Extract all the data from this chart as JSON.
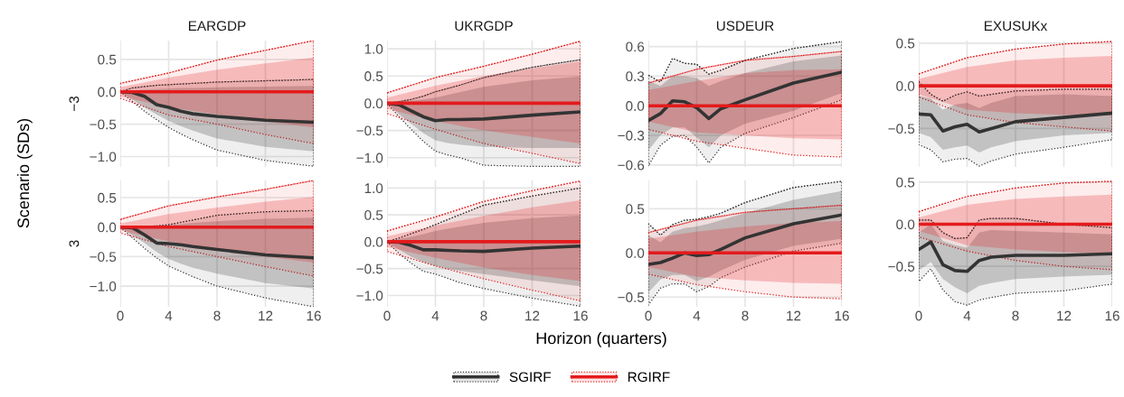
{
  "chart_data": [
    {
      "type": "line",
      "title": "EARGDP",
      "ylabel": "−3",
      "annotations": [
        "Scenario (SDs)"
      ],
      "legend": "bottom",
      "grid": true,
      "tick_labels": "y",
      "xlim": [
        0,
        16
      ],
      "xticks": [
        0,
        4,
        8,
        12,
        16
      ],
      "ylim": [
        -1.16,
        0.79
      ],
      "yticks": [
        {
          "value": -1,
          "label": "−1.0"
        },
        {
          "value": -0.5,
          "label": "−0.5"
        },
        {
          "value": 0,
          "label": "0.0"
        },
        {
          "value": 0.5,
          "label": "0.5"
        }
      ],
      "series": [
        {
          "name": "SGIRF",
          "color": "#333333",
          "x": [
            0,
            1,
            2,
            3,
            4,
            5,
            6,
            8,
            12,
            16
          ],
          "values": [
            0,
            -0.01,
            -0.07,
            -0.2,
            -0.24,
            -0.3,
            -0.34,
            -0.38,
            -0.44,
            -0.47
          ],
          "lower": [
            0,
            -0.12,
            -0.24,
            -0.35,
            -0.45,
            -0.53,
            -0.6,
            -0.72,
            -0.85,
            -0.92
          ],
          "upper": [
            0,
            0.02,
            0.03,
            0.04,
            0.05,
            0.06,
            0.06,
            0.07,
            0.08,
            0.09
          ]
        },
        {
          "name": "RGIRF",
          "color": "#e41a1c",
          "x": [
            0,
            4,
            8,
            12,
            16
          ],
          "values": [
            0,
            0,
            0,
            0,
            0
          ],
          "lower": [
            -0.07,
            -0.24,
            -0.35,
            -0.46,
            -0.55
          ],
          "upper": [
            0.07,
            0.22,
            0.34,
            0.44,
            0.53
          ]
        },
        {
          "color": "#333333",
          "line_style": "dotted",
          "x": [
            0,
            1,
            2,
            3,
            4,
            5,
            6,
            8,
            12,
            16
          ],
          "values": [
            0,
            0.06,
            0.08,
            0.1,
            0.11,
            0.12,
            0.13,
            0.15,
            0.17,
            0.19
          ],
          "lower": [
            0,
            -0.15,
            -0.3,
            -0.43,
            -0.55,
            -0.65,
            -0.74,
            -0.9,
            -1.06,
            -1.15
          ],
          "upper": [
            0,
            0.06,
            0.08,
            0.1,
            0.11,
            0.12,
            0.13,
            0.15,
            0.17,
            0.19
          ]
        },
        {
          "color": "#e41a1c",
          "line_style": "dotted",
          "x": [
            0,
            4,
            8,
            12,
            16
          ],
          "values": [
            0.13,
            0.29,
            0.49,
            0.64,
            0.79
          ],
          "lower": [
            -0.1,
            -0.36,
            -0.5,
            -0.66,
            -0.8
          ],
          "upper": [
            0.13,
            0.29,
            0.49,
            0.64,
            0.79
          ]
        }
      ]
    },
    {
      "type": "line",
      "title": "UKRGDP",
      "grid": true,
      "tick_labels": "y",
      "xlim": [
        0,
        16
      ],
      "xticks": [
        0,
        4,
        8,
        12,
        16
      ],
      "ylim": [
        -1.17,
        1.15
      ],
      "yticks": [
        {
          "value": -1,
          "label": "−1.0"
        },
        {
          "value": -0.5,
          "label": "−0.5"
        },
        {
          "value": 0,
          "label": "0.0"
        },
        {
          "value": 0.5,
          "label": "0.5"
        },
        {
          "value": 1,
          "label": "1.0"
        }
      ],
      "series": [
        {
          "color": "#333333",
          "x": [
            0,
            1,
            2,
            3,
            4,
            5,
            6,
            8,
            12,
            16
          ],
          "values": [
            0,
            -0.03,
            -0.14,
            -0.25,
            -0.32,
            -0.3,
            -0.3,
            -0.29,
            -0.22,
            -0.16
          ],
          "lower": [
            0,
            -0.2,
            -0.38,
            -0.55,
            -0.68,
            -0.73,
            -0.76,
            -0.8,
            -0.82,
            -0.82
          ],
          "upper": [
            0,
            0.03,
            0.05,
            0.07,
            0.1,
            0.15,
            0.2,
            0.3,
            0.42,
            0.49
          ]
        },
        {
          "color": "#e41a1c",
          "x": [
            0,
            4,
            8,
            12,
            16
          ],
          "values": [
            0,
            0,
            0,
            0,
            0
          ],
          "lower": [
            -0.1,
            -0.33,
            -0.5,
            -0.62,
            -0.74
          ],
          "upper": [
            0.1,
            0.32,
            0.5,
            0.64,
            0.77
          ]
        },
        {
          "color": "#333333",
          "line_style": "dotted",
          "x": [
            0,
            1,
            2,
            3,
            4,
            5,
            6,
            8,
            12,
            16
          ],
          "values": [
            0,
            0.03,
            0.07,
            0.13,
            0.21,
            0.27,
            0.33,
            0.47,
            0.66,
            0.8
          ],
          "lower": [
            0,
            -0.25,
            -0.48,
            -0.7,
            -0.88,
            -0.95,
            -1.0,
            -1.14,
            -1.16,
            -1.16
          ],
          "upper": [
            0,
            0.03,
            0.07,
            0.13,
            0.21,
            0.27,
            0.33,
            0.47,
            0.66,
            0.8
          ]
        },
        {
          "color": "#e41a1c",
          "line_style": "dotted",
          "x": [
            0,
            4,
            8,
            12,
            16
          ],
          "values": [
            0.19,
            0.47,
            0.68,
            0.9,
            1.14
          ],
          "lower": [
            -0.19,
            -0.48,
            -0.74,
            -0.92,
            -1.11
          ],
          "upper": [
            0.19,
            0.47,
            0.68,
            0.9,
            1.14
          ]
        }
      ]
    },
    {
      "type": "line",
      "title": "USDEUR",
      "grid": true,
      "tick_labels": "y",
      "xlim": [
        0,
        16
      ],
      "xticks": [
        0,
        4,
        8,
        12,
        16
      ],
      "ylim": [
        -0.62,
        0.66
      ],
      "yticks": [
        {
          "value": -0.6,
          "label": "−0.6"
        },
        {
          "value": -0.3,
          "label": "−0.3"
        },
        {
          "value": 0,
          "label": "0.0"
        },
        {
          "value": 0.3,
          "label": "0.3"
        },
        {
          "value": 0.6,
          "label": "0.6"
        }
      ],
      "series": [
        {
          "color": "#333333",
          "x": [
            0,
            1,
            2,
            3,
            4,
            5,
            6,
            8,
            12,
            16
          ],
          "values": [
            -0.15,
            -0.08,
            0.05,
            0.04,
            -0.02,
            -0.13,
            -0.03,
            0.06,
            0.23,
            0.34
          ],
          "lower": [
            -0.45,
            -0.3,
            -0.22,
            -0.22,
            -0.32,
            -0.42,
            -0.3,
            -0.18,
            -0.05,
            0.13
          ],
          "upper": [
            0.25,
            0.2,
            0.3,
            0.3,
            0.28,
            0.2,
            0.25,
            0.33,
            0.45,
            0.51
          ]
        },
        {
          "color": "#e41a1c",
          "x": [
            0,
            4,
            8,
            12,
            16
          ],
          "values": [
            0,
            0,
            0,
            0,
            0
          ],
          "lower": [
            -0.16,
            -0.27,
            -0.3,
            -0.33,
            -0.34
          ],
          "upper": [
            0.16,
            0.25,
            0.33,
            0.36,
            0.37
          ]
        },
        {
          "color": "#333333",
          "line_style": "dotted",
          "x": [
            0,
            1,
            2,
            3,
            4,
            5,
            6,
            8,
            12,
            16
          ],
          "values": [
            0.31,
            0.24,
            0.48,
            0.43,
            0.42,
            0.32,
            0.36,
            0.46,
            0.58,
            0.65
          ],
          "lower": [
            -0.61,
            -0.4,
            -0.31,
            -0.3,
            -0.42,
            -0.58,
            -0.42,
            -0.28,
            -0.12,
            0.06
          ],
          "upper": [
            0.31,
            0.24,
            0.48,
            0.43,
            0.42,
            0.32,
            0.36,
            0.46,
            0.58,
            0.65
          ]
        },
        {
          "color": "#e41a1c",
          "line_style": "dotted",
          "x": [
            0,
            4,
            8,
            12,
            16
          ],
          "values": [
            0.23,
            0.37,
            0.46,
            0.5,
            0.55
          ],
          "lower": [
            -0.24,
            -0.36,
            -0.43,
            -0.5,
            -0.52
          ],
          "upper": [
            0.23,
            0.37,
            0.46,
            0.5,
            0.55
          ]
        }
      ]
    },
    {
      "type": "line",
      "title": "EXUSUKx",
      "grid": true,
      "tick_labels": "y",
      "xlim": [
        0,
        16
      ],
      "xticks": [
        0,
        4,
        8,
        12,
        16
      ],
      "ylim": [
        -0.95,
        0.53
      ],
      "yticks": [
        {
          "value": -0.5,
          "label": "−0.5"
        },
        {
          "value": 0,
          "label": "0.0"
        },
        {
          "value": 0.5,
          "label": "0.5"
        }
      ],
      "series": [
        {
          "color": "#333333",
          "x": [
            0,
            1,
            2,
            3,
            4,
            5,
            6,
            8,
            12,
            16
          ],
          "values": [
            -0.33,
            -0.34,
            -0.53,
            -0.48,
            -0.45,
            -0.54,
            -0.5,
            -0.42,
            -0.37,
            -0.32
          ],
          "lower": [
            -0.55,
            -0.6,
            -0.75,
            -0.72,
            -0.7,
            -0.78,
            -0.72,
            -0.65,
            -0.58,
            -0.55
          ],
          "upper": [
            -0.12,
            -0.15,
            -0.28,
            -0.22,
            -0.2,
            -0.26,
            -0.2,
            -0.12,
            -0.1,
            -0.12
          ]
        },
        {
          "color": "#e41a1c",
          "x": [
            0,
            4,
            8,
            12,
            16
          ],
          "values": [
            0,
            0,
            0,
            0,
            0
          ],
          "lower": [
            -0.1,
            -0.28,
            -0.32,
            -0.34,
            -0.35
          ],
          "upper": [
            0.08,
            0.22,
            0.3,
            0.33,
            0.35
          ]
        },
        {
          "color": "#333333",
          "line_style": "dotted",
          "x": [
            0,
            1,
            2,
            3,
            4,
            5,
            6,
            8,
            12,
            16
          ],
          "values": [
            0.05,
            -0.1,
            -0.18,
            -0.11,
            -0.07,
            -0.12,
            -0.1,
            -0.06,
            -0.04,
            -0.04
          ],
          "lower": [
            -0.69,
            -0.75,
            -0.89,
            -0.86,
            -0.85,
            -0.94,
            -0.88,
            -0.8,
            -0.72,
            -0.63
          ],
          "upper": [
            0.05,
            -0.1,
            -0.18,
            -0.11,
            -0.07,
            -0.12,
            -0.1,
            -0.06,
            -0.04,
            -0.04
          ]
        },
        {
          "color": "#e41a1c",
          "line_style": "dotted",
          "x": [
            0,
            4,
            8,
            12,
            16
          ],
          "values": [
            0.14,
            0.33,
            0.43,
            0.49,
            0.52
          ],
          "lower": [
            -0.13,
            -0.34,
            -0.43,
            -0.48,
            -0.53
          ],
          "upper": [
            0.14,
            0.33,
            0.43,
            0.49,
            0.52
          ]
        }
      ]
    },
    {
      "type": "line",
      "ylabel": "3",
      "grid": true,
      "xlim": [
        0,
        16
      ],
      "xticks": [
        0,
        4,
        8,
        12,
        16
      ],
      "ylim": [
        -1.35,
        0.79
      ],
      "yticks": [
        {
          "value": -1,
          "label": "−1.0"
        },
        {
          "value": -0.5,
          "label": "−0.5"
        },
        {
          "value": 0,
          "label": "0.0"
        },
        {
          "value": 0.5,
          "label": "0.5"
        }
      ],
      "series": [
        {
          "color": "#333333",
          "x": [
            0,
            1,
            2,
            3,
            4,
            5,
            6,
            8,
            12,
            16
          ],
          "values": [
            0,
            -0.01,
            -0.13,
            -0.27,
            -0.28,
            -0.3,
            -0.33,
            -0.38,
            -0.47,
            -0.52
          ],
          "lower": [
            0,
            -0.14,
            -0.27,
            -0.42,
            -0.54,
            -0.62,
            -0.69,
            -0.79,
            -0.95,
            -1.04
          ],
          "upper": [
            0,
            0.01,
            0.01,
            0.02,
            0.03,
            0.05,
            0.07,
            0.1,
            0.14,
            0.16
          ]
        },
        {
          "color": "#e41a1c",
          "x": [
            0,
            4,
            8,
            12,
            16
          ],
          "values": [
            0,
            0,
            0,
            0,
            0
          ],
          "lower": [
            -0.06,
            -0.24,
            -0.38,
            -0.5,
            -0.6
          ],
          "upper": [
            0.06,
            0.22,
            0.33,
            0.43,
            0.51
          ]
        },
        {
          "color": "#333333",
          "line_style": "dotted",
          "x": [
            0,
            1,
            2,
            3,
            4,
            5,
            6,
            8,
            12,
            16
          ],
          "values": [
            0,
            0.01,
            0.01,
            0.02,
            0.04,
            0.08,
            0.12,
            0.2,
            0.26,
            0.28
          ],
          "lower": [
            0,
            -0.18,
            -0.36,
            -0.52,
            -0.66,
            -0.75,
            -0.84,
            -1.0,
            -1.2,
            -1.35
          ],
          "upper": [
            0,
            0.01,
            0.01,
            0.02,
            0.04,
            0.08,
            0.12,
            0.2,
            0.26,
            0.28
          ]
        },
        {
          "color": "#e41a1c",
          "line_style": "dotted",
          "x": [
            0,
            4,
            8,
            12,
            16
          ],
          "values": [
            0.13,
            0.36,
            0.51,
            0.64,
            0.79
          ],
          "lower": [
            -0.1,
            -0.33,
            -0.5,
            -0.67,
            -0.83
          ],
          "upper": [
            0.13,
            0.36,
            0.51,
            0.64,
            0.79
          ]
        }
      ]
    },
    {
      "type": "line",
      "xlabel": "Horizon (quarters)",
      "grid": true,
      "xlim": [
        0,
        16
      ],
      "xticks": [
        0,
        4,
        8,
        12,
        16
      ],
      "ylim": [
        -1.21,
        1.14
      ],
      "yticks": [
        {
          "value": -1,
          "label": "−1.0"
        },
        {
          "value": -0.5,
          "label": "−0.5"
        },
        {
          "value": 0,
          "label": "0.0"
        },
        {
          "value": 0.5,
          "label": "0.5"
        },
        {
          "value": 1,
          "label": "1.0"
        }
      ],
      "series": [
        {
          "color": "#333333",
          "x": [
            0,
            1,
            2,
            3,
            4,
            5,
            6,
            8,
            12,
            16
          ],
          "values": [
            0,
            -0.01,
            -0.07,
            -0.15,
            -0.15,
            -0.16,
            -0.17,
            -0.18,
            -0.12,
            -0.08
          ],
          "lower": [
            0,
            -0.15,
            -0.28,
            -0.38,
            -0.45,
            -0.5,
            -0.54,
            -0.6,
            -0.72,
            -0.83
          ],
          "upper": [
            0,
            0.05,
            0.09,
            0.14,
            0.2,
            0.24,
            0.28,
            0.35,
            0.44,
            0.49
          ]
        },
        {
          "color": "#e41a1c",
          "x": [
            0,
            4,
            8,
            12,
            16
          ],
          "values": [
            0,
            0,
            0,
            0,
            0
          ],
          "lower": [
            -0.1,
            -0.3,
            -0.48,
            -0.62,
            -0.73
          ],
          "upper": [
            0.1,
            0.3,
            0.48,
            0.64,
            0.77
          ]
        },
        {
          "color": "#333333",
          "line_style": "dotted",
          "x": [
            0,
            1,
            2,
            3,
            4,
            5,
            6,
            8,
            12,
            16
          ],
          "values": [
            0,
            0.07,
            0.15,
            0.23,
            0.32,
            0.41,
            0.5,
            0.68,
            0.85,
            1.0
          ],
          "lower": [
            0,
            -0.22,
            -0.4,
            -0.55,
            -0.6,
            -0.68,
            -0.76,
            -0.87,
            -1.05,
            -1.2
          ],
          "upper": [
            0,
            0.07,
            0.15,
            0.23,
            0.32,
            0.41,
            0.5,
            0.68,
            0.85,
            1.0
          ]
        },
        {
          "color": "#e41a1c",
          "line_style": "dotted",
          "x": [
            0,
            4,
            8,
            12,
            16
          ],
          "values": [
            0.2,
            0.46,
            0.75,
            0.95,
            1.13
          ],
          "lower": [
            -0.18,
            -0.45,
            -0.69,
            -0.9,
            -1.1
          ],
          "upper": [
            0.2,
            0.46,
            0.75,
            0.95,
            1.13
          ]
        }
      ]
    },
    {
      "type": "line",
      "grid": true,
      "xlim": [
        0,
        16
      ],
      "xticks": [
        0,
        4,
        8,
        12,
        16
      ],
      "ylim": [
        -0.61,
        0.82
      ],
      "yticks": [
        {
          "value": -0.5,
          "label": "−0.5"
        },
        {
          "value": 0,
          "label": "0.0"
        },
        {
          "value": 0.5,
          "label": "0.5"
        }
      ],
      "series": [
        {
          "color": "#333333",
          "x": [
            0,
            1,
            2,
            3,
            4,
            5,
            6,
            8,
            12,
            16
          ],
          "values": [
            -0.13,
            -0.11,
            -0.06,
            0,
            -0.03,
            -0.02,
            0.04,
            0.17,
            0.33,
            0.43
          ],
          "lower": [
            -0.45,
            -0.3,
            -0.25,
            -0.25,
            -0.32,
            -0.27,
            -0.2,
            -0.08,
            0.08,
            0.16
          ],
          "upper": [
            0.2,
            0.12,
            0.24,
            0.28,
            0.3,
            0.33,
            0.37,
            0.45,
            0.6,
            0.7
          ]
        },
        {
          "color": "#e41a1c",
          "x": [
            0,
            4,
            8,
            12,
            16
          ],
          "values": [
            0,
            0,
            0,
            0,
            0
          ],
          "lower": [
            -0.16,
            -0.27,
            -0.31,
            -0.34,
            -0.35
          ],
          "upper": [
            0.16,
            0.24,
            0.3,
            0.34,
            0.36
          ]
        },
        {
          "color": "#333333",
          "line_style": "dotted",
          "x": [
            0,
            1,
            2,
            3,
            4,
            5,
            6,
            8,
            12,
            16
          ],
          "values": [
            0.33,
            0.2,
            0.32,
            0.37,
            0.38,
            0.41,
            0.45,
            0.57,
            0.74,
            0.81
          ],
          "lower": [
            -0.59,
            -0.4,
            -0.35,
            -0.35,
            -0.44,
            -0.38,
            -0.28,
            -0.16,
            0.02,
            0.11
          ],
          "upper": [
            0.33,
            0.2,
            0.32,
            0.37,
            0.38,
            0.41,
            0.45,
            0.57,
            0.74,
            0.81
          ]
        },
        {
          "color": "#e41a1c",
          "line_style": "dotted",
          "x": [
            0,
            4,
            8,
            12,
            16
          ],
          "values": [
            0.23,
            0.37,
            0.46,
            0.5,
            0.54
          ],
          "lower": [
            -0.24,
            -0.36,
            -0.44,
            -0.5,
            -0.52
          ],
          "upper": [
            0.23,
            0.37,
            0.46,
            0.5,
            0.54
          ]
        }
      ]
    },
    {
      "type": "line",
      "grid": true,
      "xlim": [
        0,
        16
      ],
      "xticks": [
        0,
        4,
        8,
        12,
        16
      ],
      "ylim": [
        -0.98,
        0.52
      ],
      "yticks": [
        {
          "value": -0.5,
          "label": "−0.5"
        },
        {
          "value": 0,
          "label": "0.0"
        },
        {
          "value": 0.5,
          "label": "0.5"
        }
      ],
      "series": [
        {
          "color": "#333333",
          "x": [
            0,
            1,
            2,
            3,
            4,
            5,
            6,
            8,
            12,
            16
          ],
          "values": [
            -0.3,
            -0.21,
            -0.48,
            -0.55,
            -0.56,
            -0.43,
            -0.39,
            -0.37,
            -0.37,
            -0.35
          ],
          "lower": [
            -0.55,
            -0.45,
            -0.65,
            -0.75,
            -0.82,
            -0.73,
            -0.7,
            -0.65,
            -0.62,
            -0.6
          ],
          "upper": [
            -0.1,
            0,
            -0.2,
            -0.25,
            -0.28,
            -0.1,
            -0.07,
            -0.08,
            -0.1,
            -0.12
          ]
        },
        {
          "color": "#e41a1c",
          "x": [
            0,
            4,
            8,
            12,
            16
          ],
          "values": [
            0,
            0,
            0,
            0,
            0
          ],
          "lower": [
            -0.08,
            -0.25,
            -0.3,
            -0.33,
            -0.35
          ],
          "upper": [
            0.08,
            0.23,
            0.3,
            0.33,
            0.35
          ]
        },
        {
          "color": "#333333",
          "line_style": "dotted",
          "x": [
            0,
            1,
            2,
            3,
            4,
            5,
            6,
            8,
            12,
            16
          ],
          "values": [
            0.05,
            0.05,
            -0.1,
            -0.17,
            -0.16,
            0.05,
            0.07,
            0.07,
            0,
            -0.04
          ],
          "lower": [
            -0.68,
            -0.53,
            -0.78,
            -0.92,
            -0.96,
            -0.9,
            -0.87,
            -0.82,
            -0.79,
            -0.71
          ],
          "upper": [
            0.05,
            0.05,
            -0.1,
            -0.17,
            -0.16,
            0.05,
            0.07,
            0.07,
            0,
            -0.04
          ]
        },
        {
          "color": "#e41a1c",
          "line_style": "dotted",
          "x": [
            0,
            4,
            8,
            12,
            16
          ],
          "values": [
            0.15,
            0.33,
            0.43,
            0.49,
            0.51
          ],
          "lower": [
            -0.15,
            -0.32,
            -0.43,
            -0.5,
            -0.54
          ],
          "upper": [
            0.15,
            0.33,
            0.43,
            0.49,
            0.51
          ]
        }
      ]
    }
  ]
}
